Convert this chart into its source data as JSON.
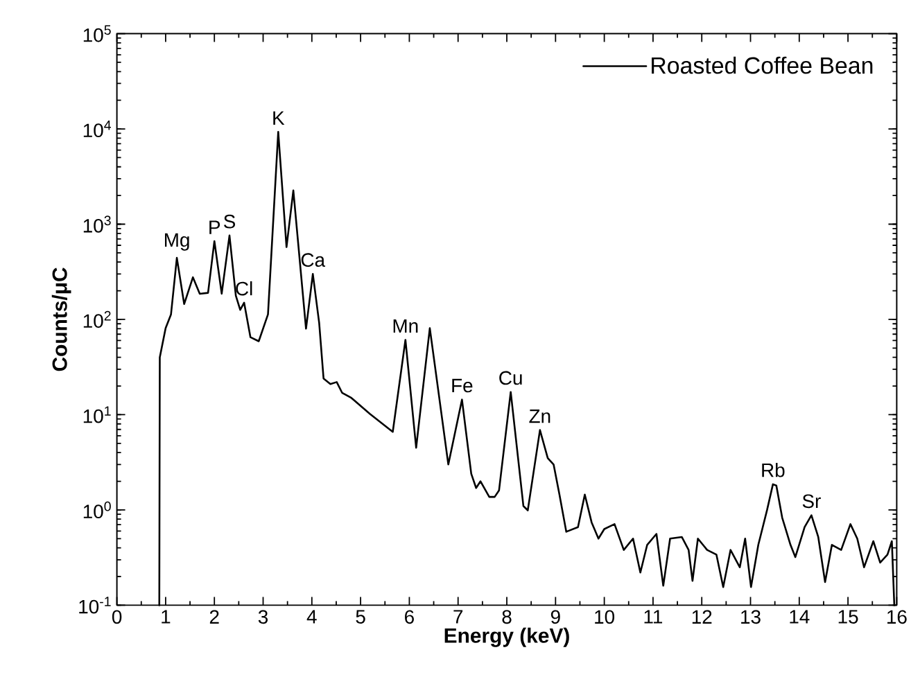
{
  "chart_data": {
    "type": "line",
    "xlabel": "Energy (keV)",
    "ylabel": "Counts/μC",
    "log": "y",
    "legend": "top right",
    "marker": "none",
    "line_style": "solid",
    "grid": false,
    "xlim": [
      0,
      16
    ],
    "xticks": [
      0,
      1,
      2,
      3,
      4,
      5,
      6,
      7,
      8,
      9,
      10,
      11,
      12,
      13,
      14,
      15,
      16
    ],
    "ylim": [
      0.1,
      100000
    ],
    "yticks": [
      {
        "value": 0.1,
        "label": "10$^{-1}$"
      },
      {
        "value": 1,
        "label": "10$^{0}$"
      },
      {
        "value": 10,
        "label": "10$^{1}$"
      },
      {
        "value": 100,
        "label": "10$^{2}$"
      },
      {
        "value": 1000,
        "label": "10$^{3}$"
      },
      {
        "value": 10000,
        "label": "10$^{4}$"
      },
      {
        "value": 100000,
        "label": "10$^{5}$"
      }
    ],
    "series": [
      {
        "name": "Roasted Coffee Bean",
        "color": "#000000",
        "x": [
          0.87,
          0.88,
          1.0,
          1.11,
          1.23,
          1.38,
          1.56,
          1.7,
          1.87,
          2.0,
          2.15,
          2.31,
          2.44,
          2.53,
          2.61,
          2.74,
          2.91,
          3.1,
          3.31,
          3.48,
          3.62,
          3.88,
          4.02,
          4.15,
          4.24,
          4.38,
          4.51,
          4.62,
          4.81,
          5.19,
          5.66,
          5.92,
          6.14,
          6.42,
          6.8,
          7.08,
          7.27,
          7.37,
          7.46,
          7.64,
          7.75,
          7.84,
          8.08,
          8.34,
          8.43,
          8.68,
          8.84,
          8.96,
          9.08,
          9.22,
          9.46,
          9.6,
          9.74,
          9.88,
          10.0,
          10.21,
          10.4,
          10.59,
          10.74,
          10.88,
          11.07,
          11.21,
          11.35,
          11.59,
          11.73,
          11.81,
          11.92,
          12.11,
          12.3,
          12.44,
          12.59,
          12.78,
          12.89,
          13.01,
          13.16,
          13.34,
          13.46,
          13.53,
          13.65,
          13.82,
          13.92,
          14.11,
          14.25,
          14.39,
          14.53,
          14.67,
          14.86,
          15.05,
          15.19,
          15.33,
          15.52,
          15.66,
          15.81,
          15.9,
          15.95
        ],
        "values": [
          0.1,
          40,
          81,
          113,
          443,
          145,
          277,
          186,
          190,
          663,
          186,
          760,
          178,
          126,
          150,
          65,
          59,
          113,
          9300,
          575,
          2260,
          80,
          300,
          92,
          24,
          21,
          22,
          17,
          15,
          10.2,
          6.6,
          61,
          4.5,
          81,
          3.0,
          14.4,
          2.4,
          1.7,
          2.0,
          1.37,
          1.37,
          1.6,
          17.3,
          1.1,
          0.99,
          6.9,
          3.5,
          3.0,
          1.45,
          0.59,
          0.66,
          1.45,
          0.74,
          0.5,
          0.63,
          0.71,
          0.38,
          0.5,
          0.22,
          0.43,
          0.56,
          0.16,
          0.5,
          0.52,
          0.38,
          0.18,
          0.5,
          0.38,
          0.34,
          0.155,
          0.38,
          0.25,
          0.5,
          0.155,
          0.43,
          1.0,
          1.86,
          1.8,
          0.83,
          0.43,
          0.32,
          0.66,
          0.88,
          0.52,
          0.175,
          0.43,
          0.38,
          0.71,
          0.5,
          0.25,
          0.47,
          0.28,
          0.34,
          0.47,
          0.1
        ]
      }
    ],
    "annotations": [
      {
        "text": "Mg",
        "x": 1.23,
        "y": 443
      },
      {
        "text": "P",
        "x": 2.0,
        "y": 663
      },
      {
        "text": "S",
        "x": 2.31,
        "y": 760
      },
      {
        "text": "Cl",
        "x": 2.61,
        "y": 150
      },
      {
        "text": "K",
        "x": 3.31,
        "y": 9300
      },
      {
        "text": "Ca",
        "x": 4.02,
        "y": 300
      },
      {
        "text": "Mn",
        "x": 5.92,
        "y": 61
      },
      {
        "text": "Fe",
        "x": 7.08,
        "y": 14.4
      },
      {
        "text": "Cu",
        "x": 8.08,
        "y": 17.3
      },
      {
        "text": "Zn",
        "x": 8.68,
        "y": 6.9
      },
      {
        "text": "Rb",
        "x": 13.46,
        "y": 1.86
      },
      {
        "text": "Sr",
        "x": 14.25,
        "y": 0.88
      }
    ]
  }
}
